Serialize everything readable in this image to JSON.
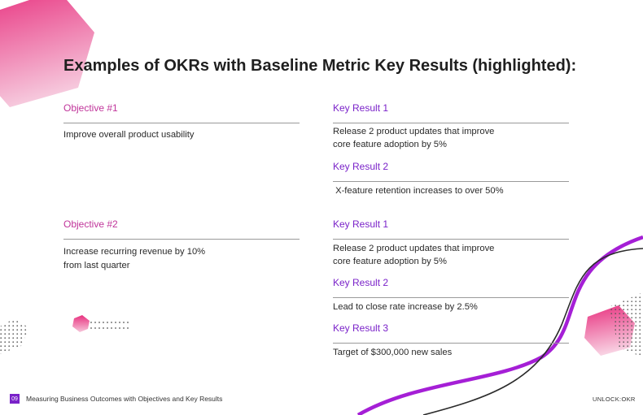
{
  "slide": {
    "title": "Examples of OKRs with Baseline Metric Key Results (highlighted):",
    "footer_text": "Measuring Business Outcomes with Objectives and Key Results",
    "page_number": "09",
    "brand": "UNLOCK:OKR"
  },
  "okr1": {
    "objective_label": "Objective #1",
    "objective_text": "Improve overall product usability",
    "key_results": [
      {
        "label": "Key Result 1",
        "line1": "Release 2 product updates that improve",
        "line2": "core feature adoption by 5%"
      },
      {
        "label": "Key Result 2",
        "line1": " X-feature retention increases to over 50%"
      }
    ]
  },
  "okr2": {
    "objective_label": "Objective #2",
    "objective_line1": "Increase recurring revenue by 10%",
    "objective_line2": "from last quarter",
    "key_results": [
      {
        "label": "Key Result 1",
        "line1": "Release 2 product updates that improve",
        "line2": "core feature adoption by 5%"
      },
      {
        "label": "Key Result 2",
        "line1": "Lead to close rate increase by 2.5%"
      },
      {
        "label": "Key Result 3",
        "line1": "Target of $300,000 new sales"
      }
    ]
  },
  "colors": {
    "objective": "#c0349a",
    "key_result": "#7a22c9",
    "accent_pink": "#e8307e",
    "accent_purple": "#a51fd6"
  }
}
